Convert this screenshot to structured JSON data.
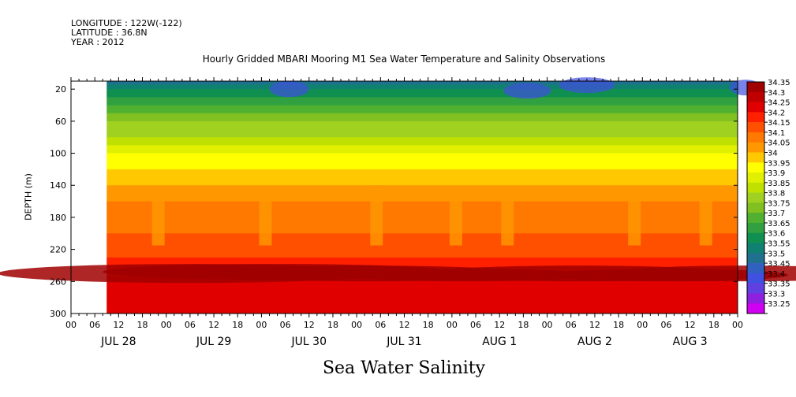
{
  "header": {
    "longitude": "LONGITUDE : 122W(-122)",
    "latitude": "LATITUDE : 36.8N",
    "year": "YEAR : 2012",
    "title": "Hourly Gridded MBARI Mooring M1 Sea Water Temperature and Salinity Observations",
    "subtitle": "Sea Water Salinity"
  },
  "chart_data": {
    "type": "heatmap",
    "title": "Hourly Gridded MBARI Mooring M1 Sea Water Temperature and Salinity Observations",
    "subtitle": "Sea Water Salinity",
    "ylabel": "DEPTH (m)",
    "xlabel": "",
    "x_range": [
      "2012-07-28 00:00",
      "2012-08-04 00:00"
    ],
    "y_range": [
      300,
      10
    ],
    "y_ticks": [
      20,
      60,
      100,
      140,
      180,
      220,
      260,
      300
    ],
    "x_hour_ticks": [
      "00",
      "06",
      "12",
      "18",
      "00",
      "06",
      "12",
      "18",
      "00",
      "06",
      "12",
      "18",
      "00",
      "06",
      "12",
      "18",
      "00",
      "06",
      "12",
      "18",
      "00",
      "06",
      "12",
      "18",
      "00",
      "06",
      "12",
      "18",
      "00"
    ],
    "day_labels": [
      "JUL 28",
      "JUL 29",
      "JUL 30",
      "JUL 31",
      "AUG  1",
      "AUG  2",
      "AUG  3"
    ],
    "data_start": "2012-07-28 09:00",
    "colorbar": {
      "levels": [
        "34.35",
        "34.3",
        "34.25",
        "34.2",
        "34.15",
        "34.1",
        "34.05",
        "34",
        "33.95",
        "33.9",
        "33.85",
        "33.8",
        "33.75",
        "33.7",
        "33.65",
        "33.6",
        "33.55",
        "33.5",
        "33.45",
        "33.4",
        "33.35",
        "33.3",
        "33.25"
      ],
      "colors": [
        "#a00000",
        "#c00000",
        "#e00000",
        "#ff2000",
        "#ff5000",
        "#ff7800",
        "#ff9800",
        "#ffc800",
        "#ffff00",
        "#e0f000",
        "#c0e000",
        "#a0d020",
        "#80c020",
        "#50b030",
        "#30a040",
        "#109050",
        "#108070",
        "#207090",
        "#3060c0",
        "#4050e0",
        "#6040e0",
        "#9020e0",
        "#d000f0"
      ]
    },
    "depth_profile": [
      {
        "depth": 10,
        "salinity": 33.5
      },
      {
        "depth": 20,
        "salinity": 33.6
      },
      {
        "depth": 40,
        "salinity": 33.7
      },
      {
        "depth": 60,
        "salinity": 33.8
      },
      {
        "depth": 80,
        "salinity": 33.85
      },
      {
        "depth": 100,
        "salinity": 33.95
      },
      {
        "depth": 120,
        "salinity": 34.0
      },
      {
        "depth": 140,
        "salinity": 34.05
      },
      {
        "depth": 160,
        "salinity": 34.1
      },
      {
        "depth": 200,
        "salinity": 34.15
      },
      {
        "depth": 230,
        "salinity": 34.2
      },
      {
        "depth": 255,
        "salinity": 34.25
      },
      {
        "depth": 300,
        "salinity": 34.25
      }
    ]
  }
}
